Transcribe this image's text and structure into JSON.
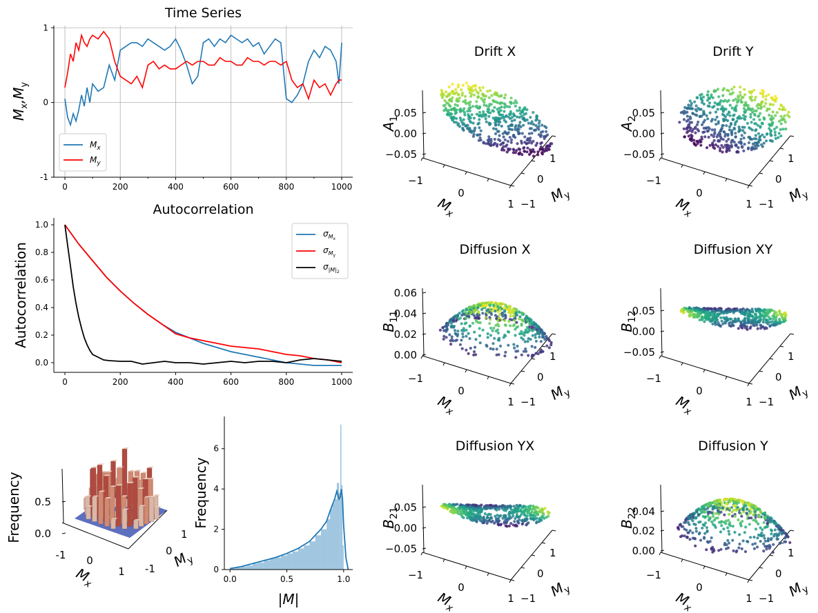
{
  "chart_data": [
    {
      "id": "ts",
      "type": "line",
      "title": "Time Series",
      "ylabel_parts": [
        "M",
        "x",
        ",M",
        "y"
      ],
      "x_ticks": [
        0,
        200,
        400,
        600,
        800,
        1000
      ],
      "y_ticks": [
        1,
        0,
        -1
      ],
      "xlim": [
        -40,
        1040
      ],
      "ylim": [
        -1,
        1.03
      ],
      "grid": true,
      "legend": "bottom-left",
      "series": [
        {
          "name": "Mx",
          "legend_parts": [
            "M",
            "x"
          ],
          "color": "#1f77b4",
          "x": [
            0,
            10,
            20,
            30,
            40,
            50,
            60,
            70,
            80,
            90,
            100,
            120,
            140,
            160,
            180,
            200,
            220,
            240,
            260,
            280,
            300,
            320,
            340,
            360,
            380,
            400,
            420,
            440,
            460,
            480,
            500,
            520,
            540,
            560,
            580,
            600,
            620,
            640,
            660,
            680,
            700,
            720,
            740,
            760,
            780,
            800,
            820,
            840,
            860,
            880,
            900,
            920,
            940,
            960,
            980,
            990,
            1000
          ],
          "y": [
            0.05,
            -0.2,
            -0.3,
            -0.15,
            -0.25,
            -0.1,
            0.1,
            -0.05,
            0.2,
            0.0,
            0.25,
            0.15,
            0.2,
            0.5,
            0.3,
            0.7,
            0.75,
            0.8,
            0.8,
            0.75,
            0.85,
            0.8,
            0.75,
            0.7,
            0.75,
            0.85,
            0.7,
            0.5,
            0.25,
            0.35,
            0.8,
            0.85,
            0.75,
            0.85,
            0.8,
            0.9,
            0.85,
            0.8,
            0.85,
            0.75,
            0.8,
            0.65,
            0.75,
            0.85,
            0.8,
            0.05,
            0.0,
            0.1,
            0.25,
            0.55,
            0.7,
            0.6,
            0.75,
            0.7,
            0.55,
            0.25,
            0.8
          ]
        },
        {
          "name": "My",
          "legend_parts": [
            "M",
            "y"
          ],
          "color": "#ff0000",
          "x": [
            0,
            10,
            20,
            30,
            40,
            50,
            60,
            70,
            80,
            90,
            100,
            120,
            140,
            160,
            180,
            200,
            220,
            240,
            260,
            280,
            300,
            320,
            340,
            360,
            380,
            400,
            420,
            440,
            460,
            480,
            500,
            520,
            540,
            560,
            580,
            600,
            620,
            640,
            660,
            680,
            700,
            720,
            740,
            760,
            780,
            800,
            820,
            840,
            860,
            880,
            900,
            920,
            940,
            960,
            980,
            990,
            1000
          ],
          "y": [
            0.2,
            0.4,
            0.65,
            0.55,
            0.8,
            0.7,
            0.9,
            0.8,
            0.75,
            0.85,
            0.9,
            0.85,
            0.95,
            0.85,
            0.55,
            0.35,
            0.3,
            0.25,
            0.35,
            0.2,
            0.5,
            0.55,
            0.45,
            0.5,
            0.45,
            0.45,
            0.5,
            0.55,
            0.5,
            0.55,
            0.55,
            0.5,
            0.5,
            0.6,
            0.55,
            0.55,
            0.5,
            0.5,
            0.6,
            0.55,
            0.55,
            0.5,
            0.55,
            0.55,
            0.5,
            0.55,
            0.3,
            0.2,
            0.25,
            0.05,
            0.3,
            0.2,
            0.25,
            0.1,
            0.25,
            0.3,
            0.3
          ]
        }
      ]
    },
    {
      "id": "ac",
      "type": "line",
      "title": "Autocorrelation",
      "ylabel": "Autocorrelation",
      "x_ticks": [
        0,
        200,
        400,
        600,
        800,
        1000
      ],
      "y_ticks": [
        1.0,
        0.8,
        0.6,
        0.4,
        0.2,
        0.0
      ],
      "y_tick_labels": [
        "1.0",
        "0.8",
        "0.6",
        "0.4",
        "0.2",
        "0.0"
      ],
      "xlim": [
        -40,
        1040
      ],
      "ylim": [
        -0.07,
        1.05
      ],
      "legend": "top-right",
      "series": [
        {
          "name": "σMx",
          "legend_parts": [
            "σ",
            "M",
            "x"
          ],
          "color": "#1f77b4",
          "x": [
            0,
            50,
            100,
            150,
            200,
            250,
            300,
            350,
            400,
            450,
            500,
            550,
            600,
            650,
            700,
            750,
            800,
            850,
            900,
            950,
            1000
          ],
          "y": [
            1.0,
            0.86,
            0.74,
            0.62,
            0.52,
            0.43,
            0.35,
            0.28,
            0.22,
            0.18,
            0.14,
            0.11,
            0.08,
            0.06,
            0.04,
            0.02,
            0.0,
            -0.01,
            -0.02,
            -0.02,
            -0.02
          ]
        },
        {
          "name": "σMy",
          "legend_parts": [
            "σ",
            "M",
            "y"
          ],
          "color": "#ff0000",
          "x": [
            0,
            50,
            100,
            150,
            200,
            250,
            300,
            350,
            400,
            450,
            500,
            550,
            600,
            650,
            700,
            750,
            800,
            850,
            900,
            950,
            1000
          ],
          "y": [
            1.0,
            0.86,
            0.74,
            0.62,
            0.52,
            0.43,
            0.35,
            0.28,
            0.21,
            0.18,
            0.16,
            0.14,
            0.12,
            0.11,
            0.1,
            0.08,
            0.06,
            0.05,
            0.03,
            0.02,
            0.0
          ]
        },
        {
          "name": "σ|M|²",
          "legend_parts": [
            "σ",
            "|M|",
            "2"
          ],
          "color": "#000000",
          "x": [
            0,
            10,
            20,
            30,
            40,
            50,
            60,
            70,
            80,
            90,
            100,
            120,
            140,
            160,
            200,
            240,
            280,
            320,
            360,
            400,
            450,
            500,
            550,
            600,
            650,
            700,
            750,
            800,
            850,
            900,
            950,
            1000
          ],
          "y": [
            1.0,
            0.85,
            0.7,
            0.55,
            0.43,
            0.33,
            0.25,
            0.18,
            0.13,
            0.09,
            0.06,
            0.04,
            0.02,
            0.015,
            0.01,
            0.01,
            -0.01,
            0.0,
            0.01,
            0.0,
            0.0,
            -0.01,
            0.0,
            0.01,
            0.0,
            0.01,
            0.01,
            0.0,
            0.02,
            0.03,
            0.02,
            0.01
          ]
        }
      ]
    },
    {
      "id": "hist3d",
      "type": "bar3d",
      "zlabel": "Frequency",
      "z_ticks": [
        0.0,
        0.5
      ],
      "z_tick_labels": [
        "0.0",
        "0.5"
      ],
      "xlabel_parts": [
        "M",
        "x"
      ],
      "ylabel_parts": [
        "M",
        "y"
      ],
      "x_ticks": [
        "-1",
        "0",
        "1"
      ],
      "y_ticks": [
        "1",
        "0",
        "-1"
      ]
    },
    {
      "id": "hist",
      "type": "histogram",
      "ylabel": "Frequency",
      "xlabel": "|M|",
      "x_ticks": [
        0.0,
        0.5,
        1.0
      ],
      "x_tick_labels": [
        "0.0",
        "0.5",
        "1.0"
      ],
      "y_ticks": [
        0,
        2,
        4,
        6
      ],
      "xlim": [
        -0.05,
        1.08
      ],
      "ylim": [
        0,
        7.6
      ],
      "bins": [
        0.0,
        0.05,
        0.1,
        0.15,
        0.2,
        0.25,
        0.3,
        0.35,
        0.4,
        0.45,
        0.5,
        0.55,
        0.6,
        0.65,
        0.7,
        0.75,
        0.8,
        0.85,
        0.88,
        0.9,
        0.92,
        0.94,
        0.96,
        0.97,
        0.98,
        0.99,
        1.0
      ],
      "values": [
        0.05,
        0.1,
        0.15,
        0.2,
        0.3,
        0.35,
        0.45,
        0.55,
        0.6,
        0.7,
        0.8,
        0.9,
        1.05,
        1.2,
        1.4,
        1.7,
        2.0,
        2.5,
        3.0,
        3.3,
        3.5,
        4.3,
        3.8,
        7.2,
        4.2,
        1.2
      ],
      "kde_x": [
        0.0,
        0.05,
        0.1,
        0.2,
        0.3,
        0.4,
        0.5,
        0.6,
        0.7,
        0.75,
        0.8,
        0.85,
        0.88,
        0.9,
        0.92,
        0.94,
        0.96,
        0.97,
        0.98,
        0.99,
        1.0,
        1.02,
        1.04
      ],
      "kde_y": [
        0.05,
        0.1,
        0.15,
        0.3,
        0.45,
        0.6,
        0.8,
        1.05,
        1.4,
        1.7,
        2.0,
        2.4,
        2.9,
        3.2,
        3.5,
        3.9,
        3.5,
        3.6,
        4.0,
        3.5,
        2.2,
        0.6,
        0.0
      ]
    },
    {
      "id": "driftx",
      "type": "scatter3d",
      "title": "Drift X",
      "zlabel_parts": [
        "A",
        "1"
      ],
      "z_ticks": [
        "0.05",
        "0.00",
        "−0.05"
      ],
      "x_ticks": [
        "−1",
        "0",
        "1"
      ],
      "y_ticks": [
        "1",
        "0",
        "−1"
      ],
      "xlabel_parts": [
        "M",
        "x"
      ],
      "ylabel_parts": [
        "M",
        "y"
      ]
    },
    {
      "id": "drifty",
      "type": "scatter3d",
      "title": "Drift Y",
      "zlabel_parts": [
        "A",
        "2"
      ],
      "z_ticks": [
        "0.05",
        "0.00",
        "−0.05"
      ],
      "x_ticks": [
        "−1",
        "0",
        "1"
      ],
      "y_ticks": [
        "1",
        "0",
        "−1"
      ],
      "xlabel_parts": [
        "M",
        "x"
      ],
      "ylabel_parts": [
        "M",
        "y"
      ]
    },
    {
      "id": "diffx",
      "type": "scatter3d",
      "title": "Diffusion X",
      "zlabel_parts": [
        "B",
        "11"
      ],
      "z_ticks": [
        "0.06",
        "0.04",
        "0.02",
        "0.00"
      ],
      "x_ticks": [
        "−1",
        "0",
        "1"
      ],
      "y_ticks": [
        "1",
        "0",
        "−1"
      ],
      "xlabel_parts": [
        "M",
        "x"
      ],
      "ylabel_parts": [
        "M",
        "y"
      ]
    },
    {
      "id": "diffxy",
      "type": "scatter3d",
      "title": "Diffusion XY",
      "zlabel_parts": [
        "B",
        "12"
      ],
      "z_ticks": [
        "0.05",
        "0.00",
        "−0.05"
      ],
      "x_ticks": [
        "−1",
        "0",
        "1"
      ],
      "y_ticks": [
        "1",
        "0",
        "−1"
      ],
      "xlabel_parts": [
        "M",
        "x"
      ],
      "ylabel_parts": [
        "M",
        "y"
      ]
    },
    {
      "id": "diffyx",
      "type": "scatter3d",
      "title": "Diffusion YX",
      "zlabel_parts": [
        "B",
        "21"
      ],
      "z_ticks": [
        "0.05",
        "0.00",
        "−0.05"
      ],
      "x_ticks": [
        "−1",
        "0",
        "1"
      ],
      "y_ticks": [
        "1",
        "0",
        "−1"
      ],
      "xlabel_parts": [
        "M",
        "x"
      ],
      "ylabel_parts": [
        "M",
        "y"
      ]
    },
    {
      "id": "diffy",
      "type": "scatter3d",
      "title": "Diffusion Y",
      "zlabel_parts": [
        "B",
        "22"
      ],
      "z_ticks": [
        "0.04",
        "0.02",
        "0.00"
      ],
      "x_ticks": [
        "−1",
        "0",
        "1"
      ],
      "y_ticks": [
        "1",
        "0",
        "−1"
      ],
      "xlabel_parts": [
        "M",
        "x"
      ],
      "ylabel_parts": [
        "M",
        "y"
      ]
    }
  ]
}
